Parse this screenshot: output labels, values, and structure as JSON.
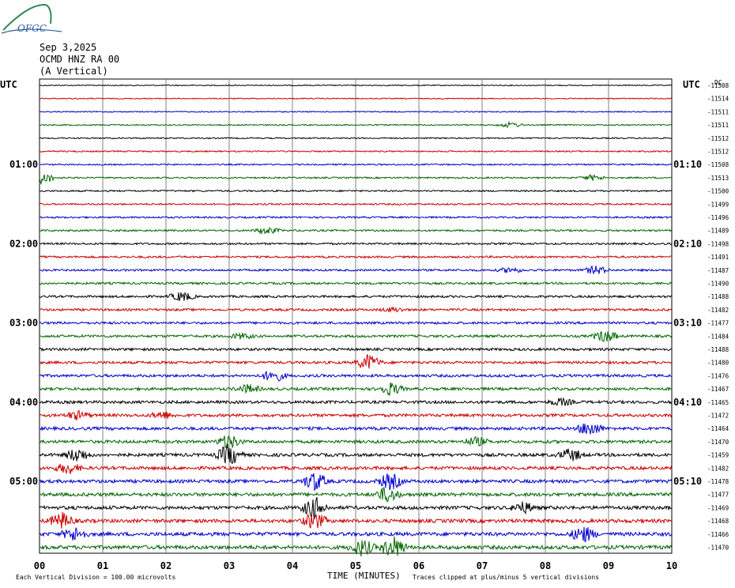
{
  "logo": {
    "text": "OFGC"
  },
  "header": {
    "date": "Sep 3,2025",
    "station": "OCMD HNZ RA 00",
    "component": "(A Vertical)"
  },
  "left_axis_title": "UTC",
  "right_axis_title": "UTC",
  "right_col_title": "DC",
  "footer": {
    "scale_note": "Each Vertical Division = 100.00 microvolts",
    "xlabel": "TIME (MINUTES)",
    "clip_note": "Traces clipped at plus/minus 5 vertical divisions"
  },
  "colors": {
    "cycle": [
      "#000000",
      "#cc0000",
      "#0000cc",
      "#006600"
    ],
    "grid": "#808080"
  },
  "chart_data": {
    "type": "line",
    "title": "",
    "xlabel": "TIME (MINUTES)",
    "x_ticks": [
      "00",
      "01",
      "02",
      "03",
      "04",
      "05",
      "06",
      "07",
      "08",
      "09",
      "10"
    ],
    "xlim": [
      0,
      10
    ],
    "left_time_labels": [
      {
        "row": 6,
        "text": "01:00"
      },
      {
        "row": 12,
        "text": "02:00"
      },
      {
        "row": 18,
        "text": "03:00"
      },
      {
        "row": 24,
        "text": "04:00"
      },
      {
        "row": 30,
        "text": "05:00"
      }
    ],
    "right_time_labels": [
      {
        "row": 6,
        "text": "01:10"
      },
      {
        "row": 12,
        "text": "02:10"
      },
      {
        "row": 18,
        "text": "03:10"
      },
      {
        "row": 24,
        "text": "04:10"
      },
      {
        "row": 30,
        "text": "05:10"
      }
    ],
    "dc_offsets": [
      "-11508",
      "-11514",
      "-11511",
      "-11511",
      "-11512",
      "-11512",
      "-11508",
      "-11513",
      "-11500",
      "-11499",
      "-11496",
      "-11489",
      "-11498",
      "-11491",
      "-11487",
      "-11490",
      "-11488",
      "-11482",
      "-11477",
      "-11484",
      "-11488",
      "-11480",
      "-11476",
      "-11467",
      "-11465",
      "-11472",
      "-11464",
      "-11470",
      "-11459",
      "-11482",
      "-11478",
      "-11477",
      "-11469",
      "-11468",
      "-11466",
      "-11470"
    ],
    "traces": {
      "count": 36,
      "color_cycle": [
        "black",
        "red",
        "blue",
        "green"
      ],
      "events": [
        {
          "row": 3,
          "minute": 7.45,
          "amp": 0.2
        },
        {
          "row": 7,
          "minute": 0.05,
          "amp": 0.45
        },
        {
          "row": 7,
          "minute": 8.75,
          "amp": 0.2
        },
        {
          "row": 11,
          "minute": 3.6,
          "amp": 0.25
        },
        {
          "row": 14,
          "minute": 7.45,
          "amp": 0.2
        },
        {
          "row": 14,
          "minute": 8.8,
          "amp": 0.3
        },
        {
          "row": 16,
          "minute": 2.25,
          "amp": 0.35
        },
        {
          "row": 17,
          "minute": 5.6,
          "amp": 0.15
        },
        {
          "row": 19,
          "minute": 3.2,
          "amp": 0.2
        },
        {
          "row": 19,
          "minute": 8.95,
          "amp": 0.45
        },
        {
          "row": 21,
          "minute": 5.2,
          "amp": 0.6
        },
        {
          "row": 22,
          "minute": 3.7,
          "amp": 0.45
        },
        {
          "row": 23,
          "minute": 3.3,
          "amp": 0.3
        },
        {
          "row": 23,
          "minute": 5.55,
          "amp": 0.45
        },
        {
          "row": 24,
          "minute": 8.25,
          "amp": 0.25
        },
        {
          "row": 25,
          "minute": 0.6,
          "amp": 0.3
        },
        {
          "row": 25,
          "minute": 1.95,
          "amp": 0.25
        },
        {
          "row": 26,
          "minute": 8.7,
          "amp": 0.55
        },
        {
          "row": 27,
          "minute": 3.0,
          "amp": 0.5
        },
        {
          "row": 27,
          "minute": 6.9,
          "amp": 0.3
        },
        {
          "row": 28,
          "minute": 0.6,
          "amp": 0.5
        },
        {
          "row": 28,
          "minute": 3.0,
          "amp": 0.8
        },
        {
          "row": 28,
          "minute": 8.4,
          "amp": 0.45
        },
        {
          "row": 29,
          "minute": 0.45,
          "amp": 0.4
        },
        {
          "row": 30,
          "minute": 4.35,
          "amp": 0.7
        },
        {
          "row": 30,
          "minute": 5.55,
          "amp": 0.6
        },
        {
          "row": 31,
          "minute": 5.5,
          "amp": 0.55
        },
        {
          "row": 32,
          "minute": 4.35,
          "amp": 0.8
        },
        {
          "row": 32,
          "minute": 7.65,
          "amp": 0.4
        },
        {
          "row": 33,
          "minute": 0.35,
          "amp": 0.6
        },
        {
          "row": 33,
          "minute": 4.35,
          "amp": 0.6
        },
        {
          "row": 34,
          "minute": 0.55,
          "amp": 0.5
        },
        {
          "row": 34,
          "minute": 8.6,
          "amp": 0.6
        },
        {
          "row": 35,
          "minute": 5.1,
          "amp": 0.6
        },
        {
          "row": 35,
          "minute": 5.6,
          "amp": 0.8
        }
      ]
    }
  }
}
